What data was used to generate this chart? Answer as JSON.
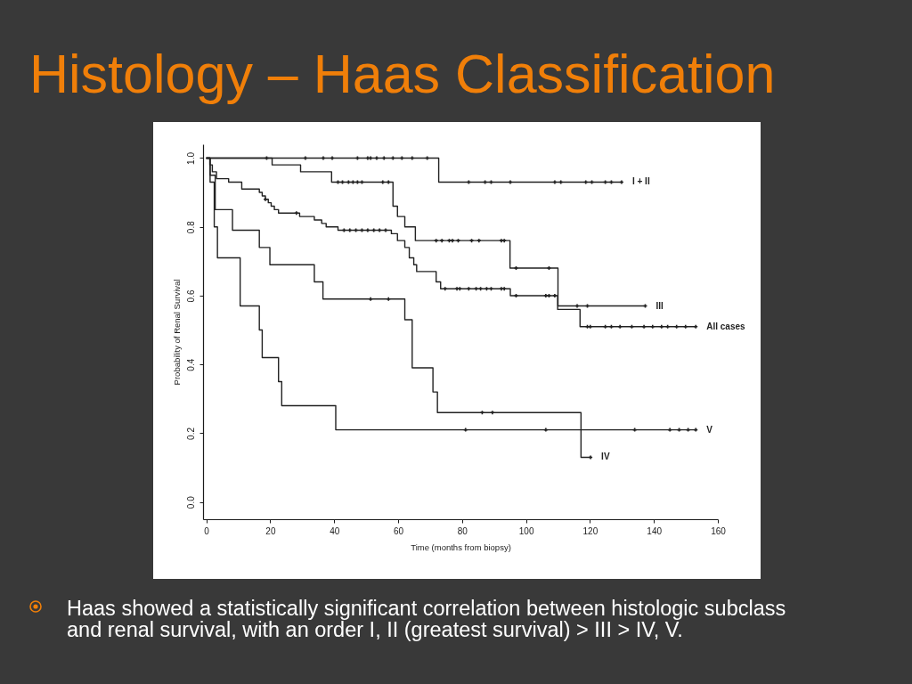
{
  "chart_data": {
    "type": "step",
    "title": "Histology – Haas Classification",
    "xlabel": "Time (months from biopsy)",
    "ylabel": "Probability of Renal Survival",
    "annotations": [
      "Haas showed a statistically significant correlation between histologic subclass and renal survival, with an order I, II (greatest survival) > III > IV, V."
    ],
    "xlim": [
      -1,
      160
    ],
    "xticks": [
      0,
      20,
      40,
      60,
      80,
      100,
      120,
      140,
      160
    ],
    "ylim": [
      -0.05,
      1.04
    ],
    "yticks": [
      {
        "value": 0,
        "label": "0.0"
      },
      0.2,
      0.4,
      0.6,
      0.8,
      {
        "value": 1,
        "label": "1.0"
      }
    ],
    "series": [
      {
        "name": "I + II",
        "color": "#222222",
        "x": [
          0,
          72.7,
          129.9
        ],
        "values": [
          1,
          0.93,
          0.93
        ]
      },
      {
        "name": "III",
        "color": "#222222",
        "x": [
          0,
          20.6,
          29.5,
          39.2,
          58.4,
          59.8,
          62.1,
          65.4,
          95,
          110,
          137.3
        ],
        "values": [
          1,
          0.98,
          0.96,
          0.93,
          0.86,
          0.83,
          0.8,
          0.76,
          0.68,
          0.57,
          0.57
        ]
      },
      {
        "name": "All cases",
        "color": "#222222",
        "x": [
          0,
          1.1,
          1.9,
          3.2,
          7,
          11.1,
          16.6,
          17.5,
          18.5,
          19.4,
          20.3,
          21.3,
          22.6,
          29.2,
          33.8,
          36.1,
          37.5,
          41.2,
          57.9,
          59.8,
          62.1,
          63.5,
          64.9,
          65.8,
          71.9,
          73.3,
          95.1,
          109.9,
          116.9,
          153.1
        ],
        "values": [
          1,
          0.98,
          0.96,
          0.94,
          0.93,
          0.91,
          0.9,
          0.89,
          0.88,
          0.87,
          0.86,
          0.85,
          0.84,
          0.83,
          0.82,
          0.81,
          0.8,
          0.79,
          0.78,
          0.76,
          0.74,
          0.71,
          0.69,
          0.67,
          0.64,
          0.62,
          0.6,
          0.56,
          0.51,
          0.51
        ]
      },
      {
        "name": "IV",
        "color": "#222222",
        "x": [
          0,
          1.2,
          2.8,
          8.2,
          16.6,
          19.9,
          33.8,
          36.5,
          62.1,
          64.4,
          70.9,
          72.3,
          117.2,
          120.2
        ],
        "values": [
          1,
          0.95,
          0.85,
          0.79,
          0.74,
          0.69,
          0.64,
          0.59,
          0.53,
          0.39,
          0.32,
          0.26,
          0.13,
          0.13
        ]
      },
      {
        "name": "V",
        "color": "#222222",
        "x": [
          0,
          1.2,
          2.5,
          3.5,
          10.6,
          16.6,
          17.5,
          22.6,
          23.6,
          40.5,
          153.1
        ],
        "values": [
          1,
          0.93,
          0.8,
          0.71,
          0.57,
          0.5,
          0.42,
          0.35,
          0.28,
          0.21,
          0.21
        ]
      },
      {
        "type": "scatter",
        "marker": "cross",
        "color": "#222222",
        "x": [
          18.9,
          31,
          36.6,
          39.4,
          47.3,
          50.5,
          51.4,
          53.3,
          55.6,
          58.4,
          61.2,
          64.4,
          69.1,
          82.1,
          87.2,
          89.1,
          95.1,
          109,
          110.9,
          118.7,
          120.6,
          124.8,
          126.7,
          129.9
        ],
        "values": [
          1,
          1,
          1,
          1,
          1,
          1,
          1,
          1,
          1,
          1,
          1,
          1,
          1,
          0.93,
          0.93,
          0.93,
          0.93,
          0.93,
          0.93,
          0.93,
          0.93,
          0.93,
          0.93,
          0.93
        ]
      },
      {
        "type": "scatter",
        "marker": "cross",
        "color": "#222222",
        "x": [
          41.2,
          42.6,
          44.5,
          45.9,
          47.3,
          48.7,
          55.2,
          57,
          71.9,
          73.7,
          76,
          77,
          78.8,
          83,
          85.3,
          92.3,
          93.2,
          96.9,
          107.2,
          116,
          119.2,
          137.3
        ],
        "values": [
          0.93,
          0.93,
          0.93,
          0.93,
          0.93,
          0.93,
          0.93,
          0.93,
          0.76,
          0.76,
          0.76,
          0.76,
          0.76,
          0.76,
          0.76,
          0.76,
          0.76,
          0.68,
          0.68,
          0.57,
          0.57,
          0.57
        ]
      },
      {
        "type": "scatter",
        "marker": "cross",
        "color": "#222222",
        "x": [
          18.5,
          28.2,
          43.1,
          44.9,
          46.8,
          48.7,
          50.5,
          52.4,
          54.2,
          56.1,
          74.7,
          78.4,
          79.3,
          82.1,
          84.4,
          85.8,
          87.7,
          89.1,
          92.3,
          93.2,
          96.9,
          106.2,
          107.2,
          109,
          119.2,
          120.1,
          124.8,
          126.7,
          129.4,
          133.1,
          136.9,
          139.6,
          142.4,
          144.3,
          147.1,
          149.9,
          153.1
        ],
        "values": [
          0.88,
          0.84,
          0.79,
          0.79,
          0.79,
          0.79,
          0.79,
          0.79,
          0.79,
          0.79,
          0.62,
          0.62,
          0.62,
          0.62,
          0.62,
          0.62,
          0.62,
          0.62,
          0.62,
          0.62,
          0.6,
          0.6,
          0.6,
          0.6,
          0.51,
          0.51,
          0.51,
          0.51,
          0.51,
          0.51,
          0.51,
          0.51,
          0.51,
          0.51,
          0.51,
          0.51,
          0.51
        ]
      },
      {
        "type": "scatter",
        "marker": "cross",
        "color": "#222222",
        "x": [
          51.4,
          57,
          86.3,
          89.5,
          120.2
        ],
        "values": [
          0.59,
          0.59,
          0.26,
          0.26,
          0.13
        ]
      },
      {
        "type": "scatter",
        "marker": "cross",
        "color": "#222222",
        "x": [
          81.1,
          106.2,
          134,
          145,
          147.9,
          150.7,
          153.1
        ],
        "values": [
          0.21,
          0.21,
          0.21,
          0.21,
          0.21,
          0.21,
          0.21
        ]
      }
    ]
  }
}
